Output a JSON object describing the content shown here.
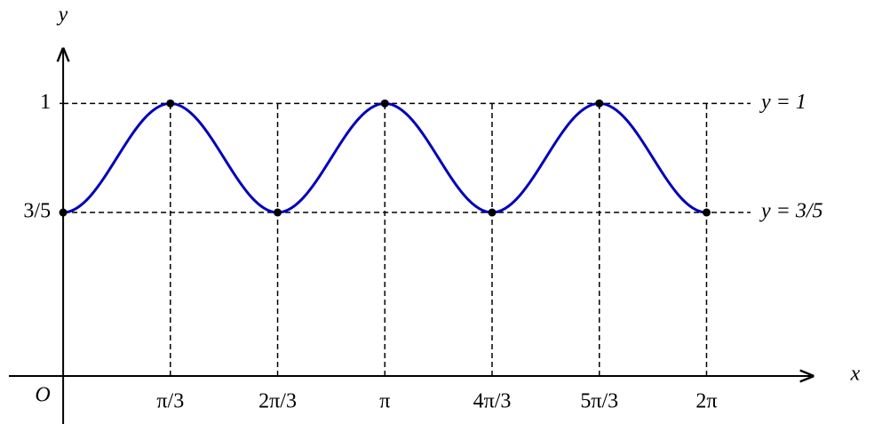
{
  "chart_data": {
    "type": "line",
    "x_label": "x",
    "y_label": "y",
    "origin_label": "O",
    "x": [
      0,
      1.0472,
      2.0944,
      3.1416,
      4.1888,
      5.236,
      6.2832
    ],
    "series": [
      {
        "color": "#0000bb",
        "values": [
          0.6,
          1,
          0.6,
          1,
          0.6,
          1,
          0.6
        ]
      }
    ],
    "xlim": [
      -0.53,
      7.32
    ],
    "ylim": [
      -0.176,
      1.2
    ],
    "xticks": [
      {
        "value": 1.0472,
        "label": "π/3"
      },
      {
        "value": 2.0944,
        "label": "2π/3"
      },
      {
        "value": 3.1416,
        "label": "π"
      },
      {
        "value": 4.1888,
        "label": "4π/3"
      },
      {
        "value": 5.236,
        "label": "5π/3"
      },
      {
        "value": 6.2832,
        "label": "2π"
      }
    ],
    "yticks": [
      {
        "value": 0.6,
        "label": "3/5"
      },
      1
    ],
    "reference_lines": [
      {
        "value": 1,
        "label": "y = 1"
      },
      {
        "value": 0.6,
        "label": "y = 3/5"
      }
    ]
  }
}
